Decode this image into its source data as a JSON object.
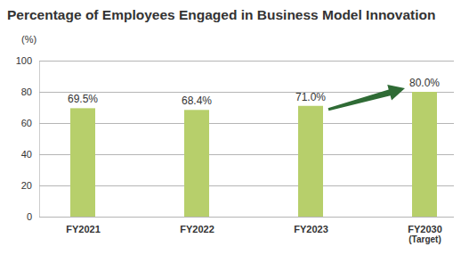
{
  "chart_data": {
    "type": "bar",
    "title": "Percentage of Employees Engaged in Business Model Innovation",
    "ylabel": "(%)",
    "categories": [
      "FY2021",
      "FY2022",
      "FY2023",
      "FY2030\n(Target)"
    ],
    "values": [
      69.5,
      68.4,
      71.0,
      80.0
    ],
    "value_labels": [
      "69.5%",
      "68.4%",
      "71.0%",
      "80.0%"
    ],
    "color": "#b7cf6b",
    "ylim": [
      0,
      100
    ],
    "yticks": [
      0,
      20,
      40,
      60,
      80,
      100
    ],
    "grid": true,
    "data_labels": true
  }
}
